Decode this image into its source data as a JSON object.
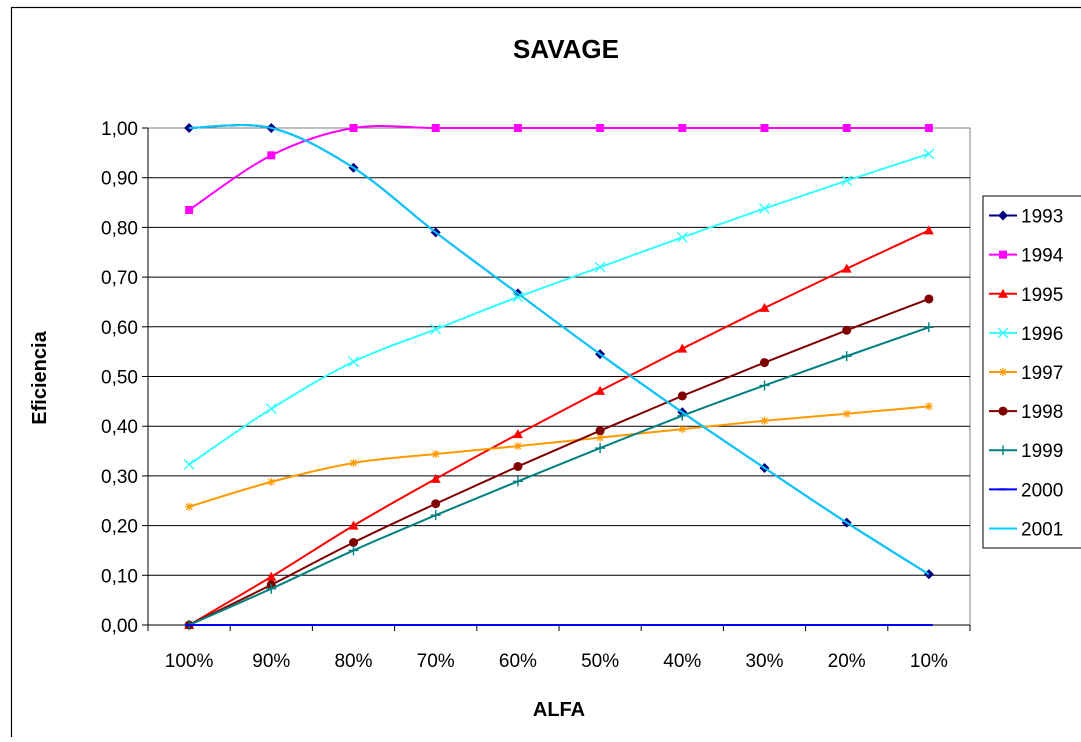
{
  "chart_data": {
    "type": "line",
    "title": "SAVAGE",
    "xlabel": "ALFA",
    "ylabel": "Eficiencia",
    "categories": [
      "100%",
      "90%",
      "80%",
      "70%",
      "60%",
      "50%",
      "40%",
      "30%",
      "20%",
      "10%"
    ],
    "ylim": [
      0,
      1
    ],
    "yticks": [
      "0,00",
      "0,10",
      "0,20",
      "0,30",
      "0,40",
      "0,50",
      "0,60",
      "0,70",
      "0,80",
      "0,90",
      "1,00"
    ],
    "grid": "horizontal",
    "legend_position": "right",
    "series": [
      {
        "name": "1993",
        "color": "#000080",
        "marker": "diamond",
        "smooth": true,
        "values": [
          1.0,
          1.0,
          0.92,
          0.79,
          0.667,
          0.545,
          0.428,
          0.316,
          0.206,
          0.102
        ]
      },
      {
        "name": "1994",
        "color": "#ff00ff",
        "marker": "square",
        "smooth": true,
        "values": [
          0.835,
          0.945,
          1.0,
          1.0,
          1.0,
          1.0,
          1.0,
          1.0,
          1.0,
          1.0
        ]
      },
      {
        "name": "1995",
        "color": "#ff0000",
        "marker": "triangle",
        "smooth": true,
        "values": [
          0.0,
          0.097,
          0.2,
          0.294,
          0.384,
          0.471,
          0.556,
          0.638,
          0.717,
          0.794
        ]
      },
      {
        "name": "1996",
        "color": "#33ffff",
        "marker": "x",
        "smooth": true,
        "values": [
          0.323,
          0.435,
          0.53,
          0.595,
          0.66,
          0.72,
          0.78,
          0.838,
          0.894,
          0.948
        ]
      },
      {
        "name": "1997",
        "color": "#ff9900",
        "marker": "star",
        "smooth": true,
        "values": [
          0.238,
          0.288,
          0.326,
          0.344,
          0.36,
          0.377,
          0.394,
          0.411,
          0.425,
          0.44
        ]
      },
      {
        "name": "1998",
        "color": "#800000",
        "marker": "circle",
        "smooth": true,
        "values": [
          0.0,
          0.081,
          0.166,
          0.244,
          0.319,
          0.391,
          0.461,
          0.528,
          0.593,
          0.656
        ]
      },
      {
        "name": "1999",
        "color": "#008080",
        "marker": "plus",
        "smooth": true,
        "values": [
          0.0,
          0.073,
          0.15,
          0.221,
          0.289,
          0.356,
          0.421,
          0.482,
          0.541,
          0.599
        ]
      },
      {
        "name": "2000",
        "color": "#0000ff",
        "marker": "dash",
        "smooth": true,
        "values": [
          0,
          0,
          0,
          0,
          0,
          0,
          0,
          0,
          0,
          0
        ]
      },
      {
        "name": "2001",
        "color": "#00ccff",
        "marker": "none",
        "smooth": true,
        "values": [
          1.0,
          1.0,
          0.92,
          0.79,
          0.667,
          0.545,
          0.428,
          0.316,
          0.206,
          0.102
        ]
      }
    ]
  }
}
